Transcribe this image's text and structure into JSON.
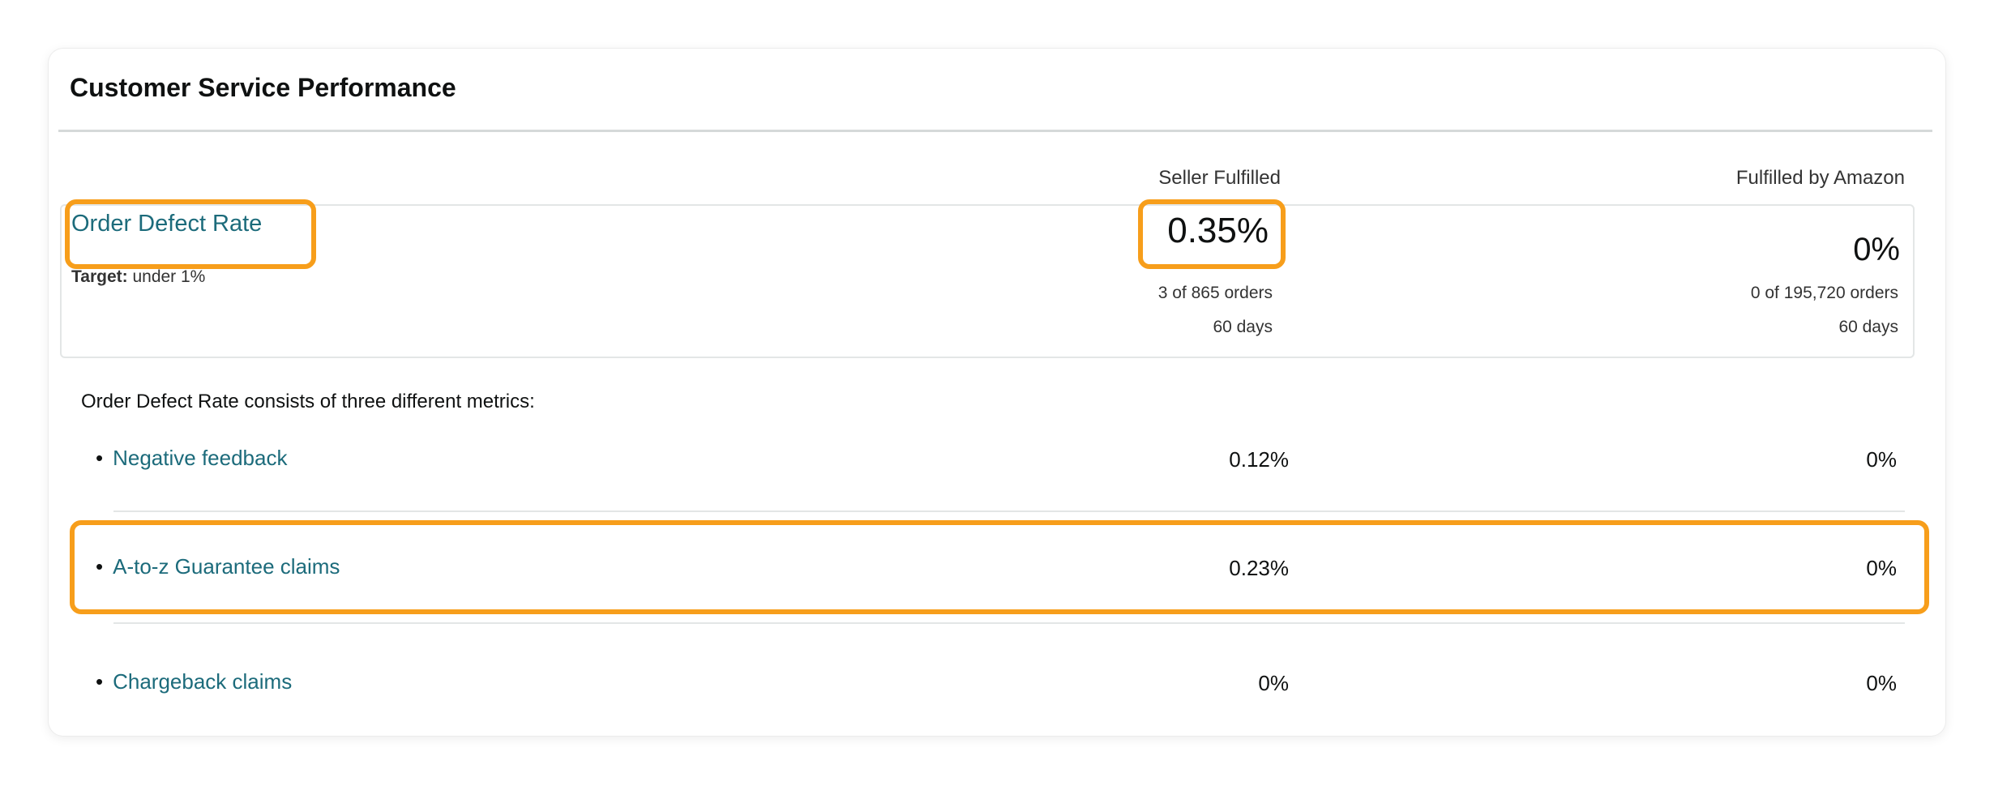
{
  "panel": {
    "title": "Customer Service Performance"
  },
  "columns": {
    "seller_fulfilled": "Seller Fulfilled",
    "fba": "Fulfilled by Amazon"
  },
  "odr": {
    "label": "Order Defect Rate",
    "target_label": "Target:",
    "target_value": " under 1%",
    "seller_fulfilled": {
      "rate": "0.35%",
      "orders": "3 of 865 orders",
      "period": "60 days"
    },
    "fba": {
      "rate": "0%",
      "orders": "0 of 195,720 orders",
      "period": "60 days"
    }
  },
  "metrics_intro": "Order Defect Rate consists of three different metrics:",
  "metrics": [
    {
      "label": "Negative feedback",
      "seller_fulfilled": "0.12%",
      "fba": "0%"
    },
    {
      "label": "A-to-z Guarantee claims",
      "seller_fulfilled": "0.23%",
      "fba": "0%"
    },
    {
      "label": "Chargeback claims",
      "seller_fulfilled": "0%",
      "fba": "0%"
    }
  ],
  "colors": {
    "link": "#1c6b7b",
    "highlight": "#f79e1b",
    "divider": "#d5d9d9"
  }
}
